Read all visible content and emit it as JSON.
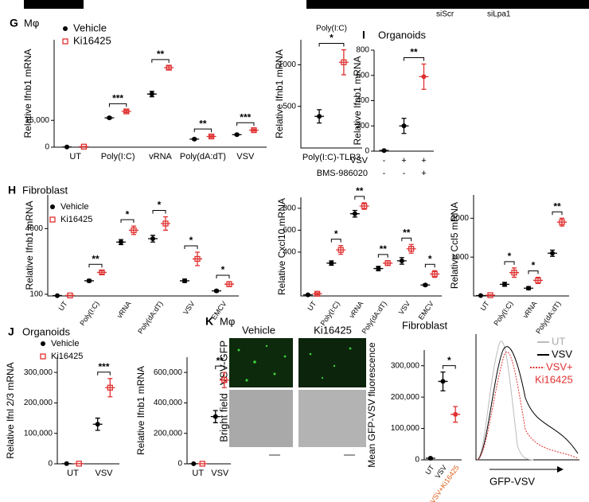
{
  "labels": {
    "siscr": "siScr",
    "silpa1": "siLpa1",
    "g_letter": "G",
    "g_title": "Mφ",
    "h_letter": "H",
    "h_title": "Fibroblast",
    "i_letter": "I",
    "i_title": "Organoids",
    "j_letter": "J",
    "j_title": "Organoids",
    "k_letter": "K",
    "k_title": "Mφ",
    "k_vehicle": "Vehicle",
    "k_ki": "Ki16425",
    "k_gfp": "VSV-GFP",
    "k_bf": "Bright field",
    "k_fibro": "Fibroblast",
    "flow_legend": [
      "UT",
      "VSV",
      "VSV+",
      "Ki16425"
    ],
    "flow_xlabel": "GFP-VSV"
  },
  "chart_data": [
    {
      "type": "dot",
      "ylabel": "Relative Ifnb1 mRNA",
      "legend": true,
      "categories": [
        "UT",
        "Poly(I:C)",
        "vRNA",
        "Poly(dA:dT)",
        "VSV"
      ],
      "series": [
        {
          "name": "Vehicle",
          "color": "#000000",
          "marker": "circle",
          "values": [
            100,
            16400,
            29700,
            4500,
            7000
          ],
          "errors": [
            50,
            600,
            1500,
            500,
            400
          ]
        },
        {
          "name": "Ki16425",
          "color": "#e03030",
          "marker": "square",
          "values": [
            300,
            20000,
            44400,
            6000,
            9500
          ],
          "errors": [
            100,
            700,
            1000,
            600,
            600
          ]
        }
      ],
      "significance": [
        null,
        "***",
        "**",
        "**",
        "***"
      ],
      "ylim": [
        0,
        60000
      ],
      "yticks": [
        0,
        {
          "value": 15000,
          "label": "15,000"
        }
      ]
    },
    {
      "type": "dot",
      "title": "Poly(I:C)",
      "ylabel": "Relative Ifnb1 mRNA",
      "categories": [
        "Poly(I:C)-TLR3"
      ],
      "series": [
        {
          "color": "#000000",
          "marker": "circle",
          "values": [
            380
          ],
          "errors": [
            80
          ]
        },
        {
          "color": "#e03030",
          "marker": "square",
          "values": [
            1030
          ],
          "errors": [
            150
          ]
        }
      ],
      "significance": [
        "*"
      ],
      "ylim": [
        0,
        1300
      ],
      "yticks": [
        500,
        1000
      ]
    },
    {
      "type": "dot",
      "ylabel": "Relative Ifnb1 mRNA",
      "categories": [
        null,
        null,
        null
      ],
      "series": [
        {
          "colors": [
            "#000000",
            "#000000",
            "#e03030"
          ],
          "marker": "circle",
          "values": [
            5,
            200,
            590
          ],
          "errors": [
            3,
            60,
            100
          ]
        }
      ],
      "significance": [
        null,
        null,
        "**"
      ],
      "rows": [
        {
          "label": "VSV",
          "values": [
            "-",
            "+",
            "+"
          ]
        },
        {
          "label": "BMS-986020",
          "values": [
            "-",
            "-",
            "+"
          ]
        }
      ],
      "ylim": [
        0,
        800
      ],
      "yticks": [
        0,
        200,
        400,
        600,
        800
      ]
    },
    {
      "type": "dot",
      "ylabel": "Relative Ifnb1 mRNA",
      "legend": true,
      "categories": [
        "UT",
        "Poly(I:C)",
        "vRNA",
        "Poly(dA:dT)",
        "VSV",
        "EMCV"
      ],
      "series": [
        {
          "name": "Vehicle",
          "color": "#000000",
          "marker": "circle",
          "values": [
            20,
            900,
            3200,
            3400,
            900,
            300
          ],
          "errors": [
            10,
            80,
            150,
            200,
            100,
            60
          ]
        },
        {
          "name": "Ki16425",
          "color": "#e03030",
          "marker": "square",
          "values": [
            30,
            1400,
            3900,
            4300,
            2200,
            700
          ],
          "errors": [
            10,
            100,
            250,
            400,
            400,
            150
          ]
        }
      ],
      "significance": [
        null,
        "**",
        "*",
        "*",
        "*",
        "*"
      ],
      "ylim": [
        0,
        6000
      ],
      "yticks": [
        100,
        4000
      ]
    },
    {
      "type": "dot",
      "ylabel": "Relative Cxcl10 mRNA",
      "categories": [
        "UT",
        "Poly(I:C)",
        "vRNA",
        "Poly(dA:dT)",
        "VSV",
        "EMCV"
      ],
      "series": [
        {
          "color": "#000000",
          "marker": "circle",
          "values": [
            10,
            300,
            750,
            250,
            320,
            100
          ],
          "errors": [
            5,
            20,
            30,
            20,
            30,
            10
          ]
        },
        {
          "color": "#e03030",
          "marker": "square",
          "values": [
            20,
            420,
            820,
            300,
            430,
            200
          ],
          "errors": [
            10,
            40,
            30,
            20,
            40,
            30
          ]
        }
      ],
      "significance": [
        null,
        "*",
        "**",
        "**",
        "**",
        "*"
      ],
      "ylim": [
        0,
        900
      ],
      "yticks": [
        400,
        600,
        800
      ]
    },
    {
      "type": "dot",
      "ylabel": "Relative Ccl5 mRNA",
      "categories": [
        "UT",
        "Poly(I:C)",
        "vRNA",
        "Poly(dA:dT)"
      ],
      "series": [
        {
          "color": "#000000",
          "marker": "circle",
          "values": [
            10,
            300,
            200,
            1100
          ],
          "errors": [
            5,
            50,
            40,
            80
          ]
        },
        {
          "color": "#e03030",
          "marker": "square",
          "values": [
            20,
            600,
            400,
            1900
          ],
          "errors": [
            10,
            120,
            80,
            100
          ]
        }
      ],
      "significance": [
        null,
        "*",
        "*",
        "**"
      ],
      "ylim": [
        0,
        2600
      ],
      "yticks": [
        1000,
        2000
      ]
    },
    {
      "type": "dot",
      "ylabel": "Relative Ifnl 2/3 mRNA",
      "legend": true,
      "categories": [
        "UT",
        "VSV"
      ],
      "series": [
        {
          "name": "Vehicle",
          "color": "#000000",
          "marker": "circle",
          "values": [
            500,
            130000
          ],
          "errors": [
            200,
            20000
          ]
        },
        {
          "name": "Ki16425",
          "color": "#e03030",
          "marker": "square",
          "values": [
            500,
            250000
          ],
          "errors": [
            200,
            30000
          ]
        }
      ],
      "significance": [
        null,
        "***"
      ],
      "ylim": [
        0,
        350000
      ],
      "yticks": [
        0,
        {
          "value": 100000,
          "label": "100,000"
        },
        {
          "value": 200000,
          "label": "200,000"
        },
        {
          "value": 300000,
          "label": "300,000"
        }
      ]
    },
    {
      "type": "dot",
      "ylabel": "Relative Ifnb1 mRNA",
      "categories": [
        "UT",
        "VSV"
      ],
      "series": [
        {
          "color": "#000000",
          "marker": "circle",
          "values": [
            500,
            310000
          ],
          "errors": [
            200,
            40000
          ]
        },
        {
          "color": "#e03030",
          "marker": "square",
          "values": [
            500,
            550000
          ],
          "errors": [
            200,
            50000
          ]
        }
      ],
      "significance": [
        null,
        "**"
      ],
      "ylim": [
        0,
        700000
      ],
      "yticks": [
        0,
        {
          "value": 200000,
          "label": "200,000"
        },
        {
          "value": 400000,
          "label": "400,000"
        },
        {
          "value": 600000,
          "label": "600,000"
        }
      ]
    },
    {
      "type": "dot",
      "ylabel": "Mean GFP-VSV fluorescence",
      "categories": [
        "UT",
        "VSV",
        "VSV+Ki16425"
      ],
      "category_colors": [
        "#000000",
        "#000000",
        "#e0601a"
      ],
      "series": [
        {
          "colors": [
            "#000000",
            "#000000",
            "#e03030"
          ],
          "marker": "circle",
          "values": [
            5000,
            250000,
            145000
          ],
          "errors": [
            2000,
            30000,
            25000
          ]
        }
      ],
      "significance": [
        null,
        null,
        "*"
      ],
      "ylim": [
        0,
        350000
      ],
      "yticks": [
        0,
        {
          "value": 100000,
          "label": "100,000"
        },
        {
          "value": 200000,
          "label": "200,000"
        },
        {
          "value": 300000,
          "label": "300,000"
        }
      ]
    }
  ]
}
